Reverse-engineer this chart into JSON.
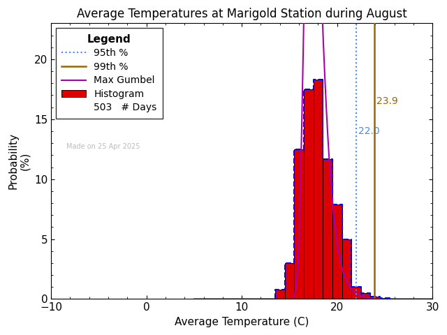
{
  "title": "Average Temperatures at Marigold Station during August",
  "xlabel": "Average Temperature (C)",
  "ylabel1": "Probability",
  "ylabel2": "(%)",
  "xlim": [
    -10,
    30
  ],
  "ylim": [
    0,
    23
  ],
  "xticks": [
    -10,
    0,
    10,
    20,
    30
  ],
  "yticks": [
    0,
    5,
    10,
    15,
    20
  ],
  "hist_bins_left": [
    13.5,
    14.5,
    15.5,
    16.5,
    17.5,
    18.5,
    19.5,
    20.5,
    21.5,
    22.5,
    23.5,
    24.5
  ],
  "hist_values": [
    0.8,
    3.0,
    12.5,
    17.5,
    18.3,
    11.7,
    7.9,
    5.0,
    1.0,
    0.5,
    0.2,
    0.1
  ],
  "hist_color": "#dd0000",
  "hist_edgecolor": "#000000",
  "gumbel_mu": 17.3,
  "gumbel_beta": 0.85,
  "percentile_95": 22.0,
  "percentile_99": 23.9,
  "p95_color": "#4488ff",
  "p99_color": "#996600",
  "gumbel_color": "#aa00aa",
  "blue_dash_color": "#0000ff",
  "n_days": 503,
  "made_on": "Made on 25 Apr 2025",
  "made_on_color": "#bbbbbb",
  "background_color": "#ffffff",
  "title_fontsize": 12,
  "axis_fontsize": 11,
  "tick_fontsize": 11,
  "legend_fontsize": 10
}
